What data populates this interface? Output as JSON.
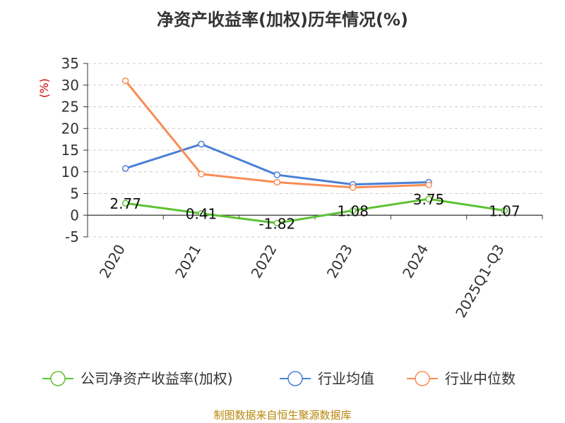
{
  "chart_data": {
    "type": "line",
    "title": "净资产收益率(加权)历年情况(%)",
    "ylabel": "(%)",
    "xlabel": "",
    "categories": [
      "2020",
      "2021",
      "2022",
      "2023",
      "2024",
      "2025Q1-Q3"
    ],
    "ylim": [
      -5,
      35
    ],
    "yticks": [
      -5,
      0,
      5,
      10,
      15,
      20,
      25,
      30,
      35
    ],
    "grid": true,
    "legend_position": "bottom",
    "series": [
      {
        "name": "公司净资产收益率(加权)",
        "color": "#5cc232",
        "values": [
          2.77,
          0.41,
          -1.82,
          1.08,
          3.75,
          1.07
        ],
        "labels": [
          "2.77",
          "0.41",
          "-1.82",
          "1.08",
          "3.75",
          "1.07"
        ]
      },
      {
        "name": "行业均值",
        "color": "#4a7fd6",
        "values": [
          10.8,
          16.4,
          9.3,
          7.1,
          7.6,
          null
        ]
      },
      {
        "name": "行业中位数",
        "color": "#f98c55",
        "values": [
          31.0,
          9.5,
          7.6,
          6.4,
          7.0,
          null
        ]
      }
    ]
  },
  "source": "制图数据来自恒生聚源数据库"
}
